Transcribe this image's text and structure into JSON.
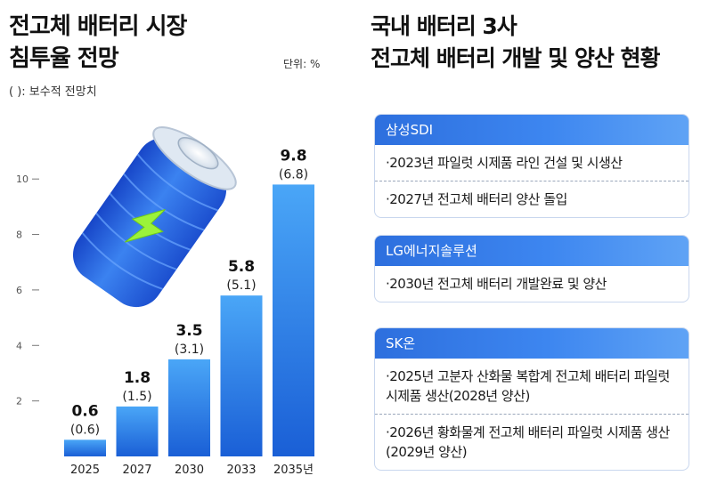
{
  "left": {
    "title_line1": "전고체 배터리 시장",
    "title_line2": "침투율 전망",
    "unit": "단위: %",
    "note": "(   ): 보수적 전망치"
  },
  "chart_data": {
    "type": "bar",
    "title": "전고체 배터리 시장 침투율 전망",
    "unit": "단위: %",
    "categories": [
      "2025",
      "2027",
      "2030",
      "2033",
      "2035년"
    ],
    "series": [
      {
        "values": [
          0.6,
          1.8,
          3.5,
          5.8,
          9.8
        ]
      },
      {
        "name": "보수적 전망치",
        "values": [
          0.6,
          1.5,
          3.1,
          5.1,
          6.8
        ]
      }
    ],
    "value_labels": [
      "0.6",
      "1.8",
      "3.5",
      "5.8",
      "9.8"
    ],
    "conservative_labels": [
      "(0.6)",
      "(1.5)",
      "(3.1)",
      "(5.1)",
      "(6.8)"
    ],
    "yticks": [
      2,
      4,
      6,
      8,
      10
    ],
    "ylim": [
      0,
      11
    ],
    "grid": false,
    "colors": {
      "bar_top": "#4aa6f7",
      "bar_bottom": "#1a5fd6"
    }
  },
  "right": {
    "title_line1": "국내 배터리 3사",
    "title_line2": "전고체 배터리 개발 및 양산 현황",
    "companies": [
      {
        "name": "삼성SDI",
        "items": [
          "·2023년 파일럿 시제품 라인 건설 및 시생산",
          "·2027년 전고체 배터리 양산 돌입"
        ]
      },
      {
        "name": "LG에너지솔루션",
        "items": [
          "·2030년 전고체 배터리 개발완료 및 양산"
        ]
      },
      {
        "name": "SK온",
        "items": [
          "·2025년 고분자 산화물 복합계 전고체 배터리 파일럿 시제품 생산(2028년 양산)",
          "·2026년 황화물계 전고체 배터리 파일럿 시제품 생산(2029년 양산)"
        ]
      }
    ]
  }
}
